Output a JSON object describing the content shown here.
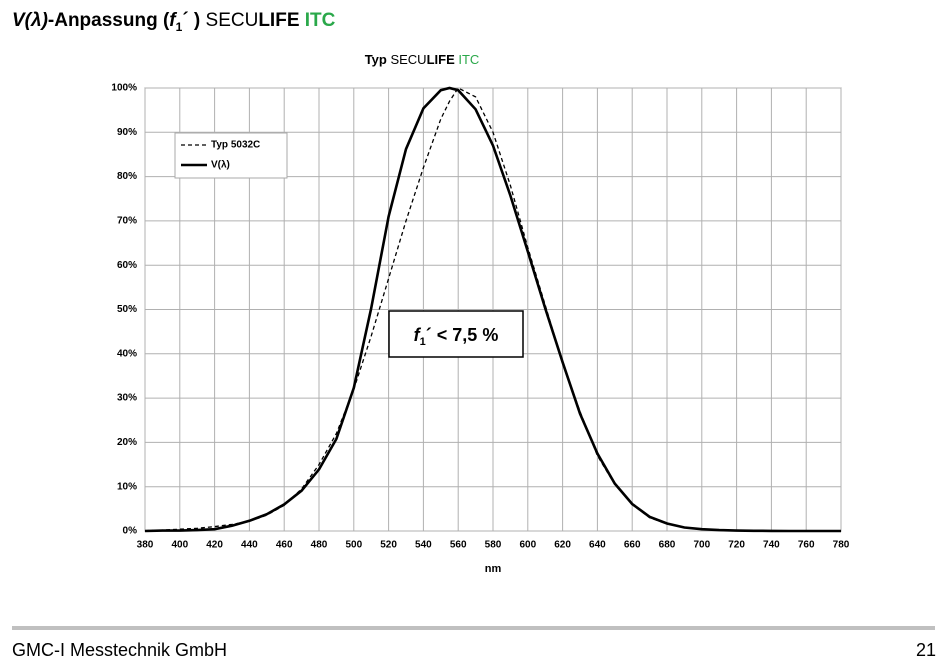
{
  "header": {
    "title": [
      "V(λ)",
      "-Anpassung (",
      "f",
      "1",
      "´ ) ",
      "SECU",
      "LIFE",
      " ITC"
    ]
  },
  "chart_data": {
    "type": "line",
    "title": [
      "Typ ",
      "SECU",
      "LIFE",
      " ITC"
    ],
    "xlabel": "nm",
    "x": [
      380,
      390,
      400,
      410,
      420,
      430,
      440,
      450,
      460,
      470,
      480,
      490,
      500,
      510,
      520,
      530,
      540,
      550,
      555,
      560,
      570,
      580,
      590,
      600,
      610,
      620,
      630,
      640,
      650,
      660,
      670,
      680,
      690,
      700,
      710,
      720,
      730,
      740,
      750,
      760,
      770,
      780
    ],
    "series": [
      {
        "name": "Typ 5032C",
        "color": "#000000",
        "dash": true,
        "values": [
          0.1,
          0.2,
          0.4,
          0.6,
          1.0,
          1.5,
          2.2,
          3.6,
          5.8,
          9.5,
          15,
          22,
          32,
          44,
          57,
          70,
          82,
          93,
          97,
          100,
          98,
          90,
          78,
          64,
          51,
          38,
          27,
          17,
          10.5,
          6,
          3,
          1.6,
          0.8,
          0.4,
          0.2,
          0.1,
          0.05,
          0.03,
          0.01,
          0.01,
          0,
          0
        ]
      },
      {
        "name": "V(λ)",
        "color": "#000000",
        "dash": false,
        "values": [
          0,
          0.1,
          0.1,
          0.2,
          0.4,
          1.2,
          2.3,
          3.8,
          6.0,
          9.1,
          13.9,
          20.8,
          32.3,
          50.3,
          71.0,
          86.2,
          95.4,
          99.5,
          100,
          99.5,
          95.2,
          87.0,
          75.7,
          63.1,
          50.3,
          38.1,
          26.5,
          17.5,
          10.7,
          6.1,
          3.2,
          1.7,
          0.8,
          0.4,
          0.2,
          0.1,
          0.05,
          0.03,
          0.01,
          0.01,
          0,
          0
        ]
      }
    ],
    "xlim": [
      380,
      780
    ],
    "xticks": [
      380,
      400,
      420,
      440,
      460,
      480,
      500,
      520,
      540,
      560,
      580,
      600,
      620,
      640,
      660,
      680,
      700,
      720,
      740,
      760,
      780
    ],
    "ylim": [
      0,
      100
    ],
    "yticks": [
      {
        "value": 0,
        "label": "0%"
      },
      {
        "value": 10,
        "label": "10%"
      },
      {
        "value": 20,
        "label": "20%"
      },
      {
        "value": 30,
        "label": "30%"
      },
      {
        "value": 40,
        "label": "40%"
      },
      {
        "value": 50,
        "label": "50%"
      },
      {
        "value": 60,
        "label": "60%"
      },
      {
        "value": 70,
        "label": "70%"
      },
      {
        "value": 80,
        "label": "80%"
      },
      {
        "value": 90,
        "label": "90%"
      },
      {
        "value": 100,
        "label": "100%"
      }
    ],
    "grid": true,
    "legend": "upper-left",
    "annotation": [
      "f",
      "1",
      "´ < 7,5 %"
    ]
  },
  "footer": {
    "company": "GMC-I Messtechnik GmbH",
    "page": "21"
  }
}
